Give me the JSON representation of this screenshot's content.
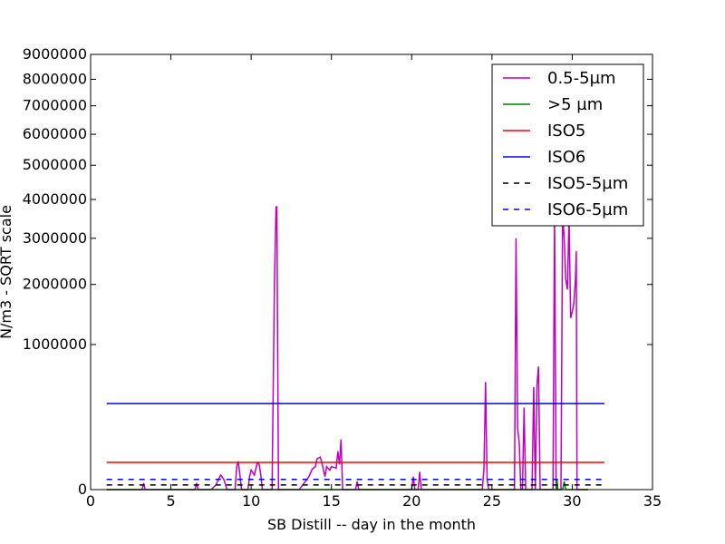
{
  "chart_data": {
    "type": "line",
    "title": "",
    "xlabel": "SB Distill -- day in the month",
    "ylabel": "N/m3 - SQRT scale",
    "xlim": [
      0,
      35
    ],
    "ylim": [
      0,
      9000000
    ],
    "y_scale": "sqrt",
    "grid": false,
    "legend_position": "top-right",
    "xticks": [
      0,
      5,
      10,
      15,
      20,
      25,
      30,
      35
    ],
    "xtick_labels": [
      "0",
      "5",
      "10",
      "15",
      "20",
      "25",
      "30",
      "35"
    ],
    "yticks": [
      0,
      1000000,
      2000000,
      3000000,
      4000000,
      5000000,
      6000000,
      7000000,
      8000000,
      9000000
    ],
    "ytick_labels": [
      "0",
      "1000000",
      "2000000",
      "3000000",
      "4000000",
      "5000000",
      "6000000",
      "7000000",
      "8000000",
      "9000000"
    ],
    "series": [
      {
        "name": "0.5-5µm",
        "color": "#bf00bf",
        "dash": "solid",
        "points": [
          [
            1.0,
            0
          ],
          [
            2.0,
            0
          ],
          [
            3.2,
            0
          ],
          [
            3.3,
            2000
          ],
          [
            3.4,
            0
          ],
          [
            5.0,
            0
          ],
          [
            6.5,
            0
          ],
          [
            6.6,
            2000
          ],
          [
            6.7,
            0
          ],
          [
            7.5,
            0
          ],
          [
            7.8,
            1000
          ],
          [
            8.0,
            6000
          ],
          [
            8.1,
            10000
          ],
          [
            8.3,
            5000
          ],
          [
            8.5,
            0
          ],
          [
            9.0,
            0
          ],
          [
            9.1,
            25000
          ],
          [
            9.2,
            38000
          ],
          [
            9.3,
            10000
          ],
          [
            9.4,
            0
          ],
          [
            9.8,
            0
          ],
          [
            9.9,
            8000
          ],
          [
            10.0,
            18000
          ],
          [
            10.2,
            10000
          ],
          [
            10.3,
            22000
          ],
          [
            10.4,
            35000
          ],
          [
            10.5,
            30000
          ],
          [
            10.6,
            10000
          ],
          [
            10.7,
            0
          ],
          [
            11.3,
            0
          ],
          [
            11.45,
            2000000
          ],
          [
            11.55,
            3800000
          ],
          [
            11.6,
            3800000
          ],
          [
            11.7,
            0
          ],
          [
            13.0,
            0
          ],
          [
            13.3,
            2000
          ],
          [
            13.6,
            8000
          ],
          [
            13.8,
            20000
          ],
          [
            14.0,
            25000
          ],
          [
            14.1,
            45000
          ],
          [
            14.3,
            50000
          ],
          [
            14.4,
            35000
          ],
          [
            14.6,
            8000
          ],
          [
            14.7,
            25000
          ],
          [
            14.9,
            18000
          ],
          [
            15.0,
            25000
          ],
          [
            15.3,
            22000
          ],
          [
            15.4,
            70000
          ],
          [
            15.5,
            30000
          ],
          [
            15.6,
            120000
          ],
          [
            15.7,
            0
          ],
          [
            16.5,
            0
          ],
          [
            16.6,
            3000
          ],
          [
            16.7,
            0
          ],
          [
            20.0,
            0
          ],
          [
            20.1,
            8000
          ],
          [
            20.2,
            0
          ],
          [
            20.4,
            0
          ],
          [
            20.5,
            15000
          ],
          [
            20.6,
            0
          ],
          [
            24.4,
            0
          ],
          [
            24.5,
            20000
          ],
          [
            24.6,
            550000
          ],
          [
            24.7,
            5000
          ],
          [
            24.8,
            0
          ],
          [
            26.4,
            0
          ],
          [
            26.5,
            3000000
          ],
          [
            26.6,
            180000
          ],
          [
            26.7,
            100000
          ],
          [
            26.8,
            0
          ],
          [
            26.9,
            0
          ],
          [
            27.0,
            320000
          ],
          [
            27.1,
            0
          ],
          [
            27.5,
            0
          ],
          [
            27.6,
            500000
          ],
          [
            27.7,
            0
          ],
          [
            27.8,
            520000
          ],
          [
            27.9,
            720000
          ],
          [
            28.0,
            0
          ],
          [
            28.8,
            0
          ],
          [
            28.9,
            3600000
          ],
          [
            29.0,
            0
          ],
          [
            29.3,
            0
          ],
          [
            29.4,
            3600000
          ],
          [
            29.5,
            3000000
          ],
          [
            29.6,
            2100000
          ],
          [
            29.7,
            1900000
          ],
          [
            29.8,
            3500000
          ],
          [
            29.9,
            1400000
          ],
          [
            30.0,
            1500000
          ],
          [
            30.1,
            1650000
          ],
          [
            30.2,
            2100000
          ],
          [
            30.25,
            2700000
          ],
          [
            30.3,
            0
          ],
          [
            31.0,
            0
          ]
        ]
      },
      {
        "name": ">5 µm",
        "color": "#008000",
        "dash": "solid",
        "points": [
          [
            1.0,
            0
          ],
          [
            10.0,
            0
          ],
          [
            29.0,
            0
          ],
          [
            29.05,
            5000
          ],
          [
            29.1,
            0
          ],
          [
            29.4,
            0
          ],
          [
            29.5,
            3000
          ],
          [
            29.6,
            0
          ],
          [
            31.0,
            0
          ]
        ]
      },
      {
        "name": "ISO5",
        "color": "#ff0000",
        "dash": "solid",
        "points": [
          [
            1.0,
            35200
          ],
          [
            32.0,
            35200
          ]
        ]
      },
      {
        "name": "ISO6",
        "color": "#0000ff",
        "dash": "solid",
        "points": [
          [
            1.0,
            352000
          ],
          [
            32.0,
            352000
          ]
        ]
      },
      {
        "name": "ISO5-5µm",
        "color": "#000000",
        "dash": "dashed",
        "points": [
          [
            1.0,
            1000
          ],
          [
            32.0,
            1000
          ]
        ]
      },
      {
        "name": "ISO6-5µm",
        "color": "#0000ff",
        "dash": "dashed",
        "points": [
          [
            1.0,
            5000
          ],
          [
            32.0,
            5000
          ]
        ]
      }
    ]
  }
}
